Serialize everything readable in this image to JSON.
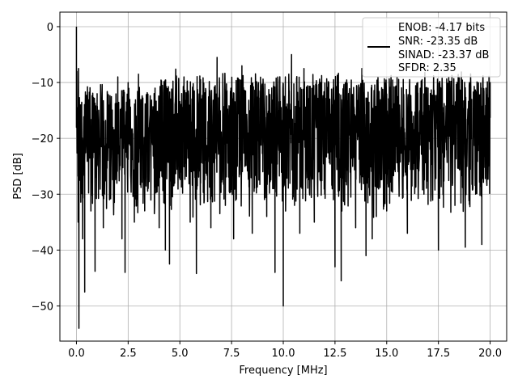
{
  "chart_data": {
    "type": "line",
    "title": "",
    "xlabel": "Frequency [MHz]",
    "ylabel": "PSD [dB]",
    "xlim": [
      -0.8,
      20.8
    ],
    "ylim": [
      -56.3,
      2.6
    ],
    "xticks": [
      0,
      2.5,
      5,
      7.5,
      10,
      12.5,
      15,
      17.5,
      20
    ],
    "xtick_labels": [
      "0.0",
      "2.5",
      "5.0",
      "7.5",
      "10.0",
      "12.5",
      "15.0",
      "17.5",
      "20.0"
    ],
    "yticks": [
      0,
      -10,
      -20,
      -30,
      -40,
      -50
    ],
    "ytick_labels": [
      "0",
      "−10",
      "−20",
      "−30",
      "−40",
      "−50"
    ],
    "grid": true,
    "legend_position": "top-right",
    "legend_entries": [
      "ENOB: -4.17 bits",
      "SNR: -23.35 dB",
      "SINAD: -23.37 dB",
      "SFDR: 2.35"
    ],
    "series": [
      {
        "color": "#000000",
        "x_start": 0,
        "x_end": 20,
        "typical_range_db": [
          -35,
          -8
        ],
        "points": [
          [
            0.0,
            0.0
          ],
          [
            0.02,
            -8
          ],
          [
            0.05,
            -21
          ],
          [
            0.08,
            -35
          ],
          [
            0.1,
            -7.5
          ],
          [
            0.12,
            -54
          ],
          [
            0.2,
            -14
          ],
          [
            0.3,
            -38
          ],
          [
            0.4,
            -47.5
          ],
          [
            0.5,
            -13
          ],
          [
            0.7,
            -33
          ],
          [
            0.9,
            -43.8
          ],
          [
            1.0,
            -12
          ],
          [
            1.3,
            -36
          ],
          [
            1.6,
            -31
          ],
          [
            2.0,
            -9
          ],
          [
            2.2,
            -38
          ],
          [
            2.35,
            -44
          ],
          [
            2.5,
            -10
          ],
          [
            2.8,
            -35
          ],
          [
            3.0,
            -8.5
          ],
          [
            3.3,
            -32
          ],
          [
            3.8,
            -11
          ],
          [
            4.0,
            -36
          ],
          [
            4.3,
            -40
          ],
          [
            4.5,
            -42.5
          ],
          [
            4.8,
            -7.6
          ],
          [
            5.2,
            -9
          ],
          [
            5.5,
            -35
          ],
          [
            5.8,
            -44.2
          ],
          [
            6.0,
            -9.5
          ],
          [
            6.5,
            -36
          ],
          [
            6.8,
            -5.5
          ],
          [
            7.2,
            -12
          ],
          [
            7.6,
            -38
          ],
          [
            8.0,
            -7
          ],
          [
            8.5,
            -37
          ],
          [
            8.8,
            -10
          ],
          [
            9.2,
            -34
          ],
          [
            9.6,
            -44
          ],
          [
            10.0,
            -50
          ],
          [
            10.1,
            -9
          ],
          [
            10.4,
            -5
          ],
          [
            10.8,
            -37
          ],
          [
            11.0,
            -7.5
          ],
          [
            11.5,
            -35
          ],
          [
            11.8,
            -10
          ],
          [
            12.0,
            -30
          ],
          [
            12.5,
            -43
          ],
          [
            12.8,
            -45.5
          ],
          [
            13.0,
            -10
          ],
          [
            13.5,
            -36
          ],
          [
            13.8,
            -7.5
          ],
          [
            14.0,
            -41
          ],
          [
            14.3,
            -38
          ],
          [
            14.5,
            -34
          ],
          [
            14.8,
            -12
          ],
          [
            15.0,
            -33
          ],
          [
            15.5,
            -9
          ],
          [
            16.0,
            -37
          ],
          [
            16.5,
            -10
          ],
          [
            16.8,
            -30
          ],
          [
            17.0,
            -11
          ],
          [
            17.5,
            -40
          ],
          [
            18.0,
            -9
          ],
          [
            18.3,
            -32
          ],
          [
            18.8,
            -39.5
          ],
          [
            19.0,
            -10
          ],
          [
            19.3,
            -30
          ],
          [
            19.6,
            -39
          ],
          [
            19.8,
            -11
          ],
          [
            20.0,
            -10
          ]
        ]
      }
    ]
  }
}
